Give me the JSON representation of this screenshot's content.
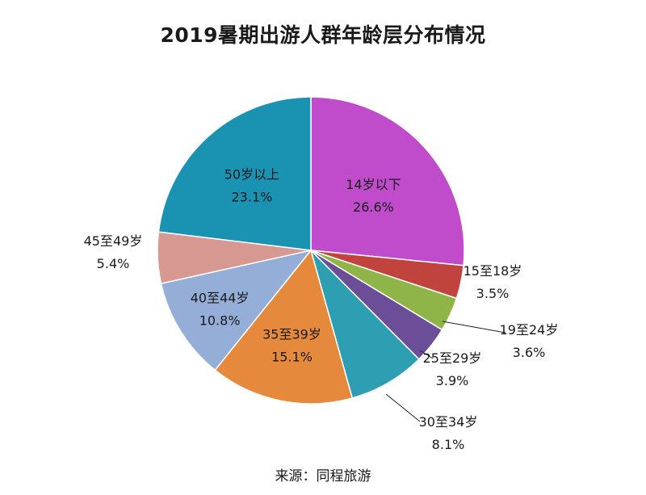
{
  "title": "2019暑期出游人群年龄层分布情况",
  "source": "来源：同程旅游",
  "chart_data": {
    "type": "pie",
    "title": "2019暑期出游人群年龄层分布情况",
    "start_angle_deg": 0,
    "direction": "clockwise",
    "slices": [
      {
        "label": "14岁以下",
        "pct": "26.6%",
        "value": 26.6,
        "color": "#c04ccc"
      },
      {
        "label": "15至18岁",
        "pct": "3.5%",
        "value": 3.5,
        "color": "#c0433e"
      },
      {
        "label": "19至24岁",
        "pct": "3.6%",
        "value": 3.6,
        "color": "#8fb548"
      },
      {
        "label": "25至29岁",
        "pct": "3.9%",
        "value": 3.9,
        "color": "#6b4e97"
      },
      {
        "label": "30至34岁",
        "pct": "8.1%",
        "value": 8.1,
        "color": "#2e9fb3"
      },
      {
        "label": "35至39岁",
        "pct": "15.1%",
        "value": 15.1,
        "color": "#e58a3c"
      },
      {
        "label": "40至44岁",
        "pct": "10.8%",
        "value": 10.8,
        "color": "#95aed8"
      },
      {
        "label": "45至49岁",
        "pct": "5.4%",
        "value": 5.4,
        "color": "#d79892"
      },
      {
        "label": "50岁以上",
        "pct": "23.1%",
        "value": 23.1,
        "color": "#1a93b3"
      }
    ]
  }
}
